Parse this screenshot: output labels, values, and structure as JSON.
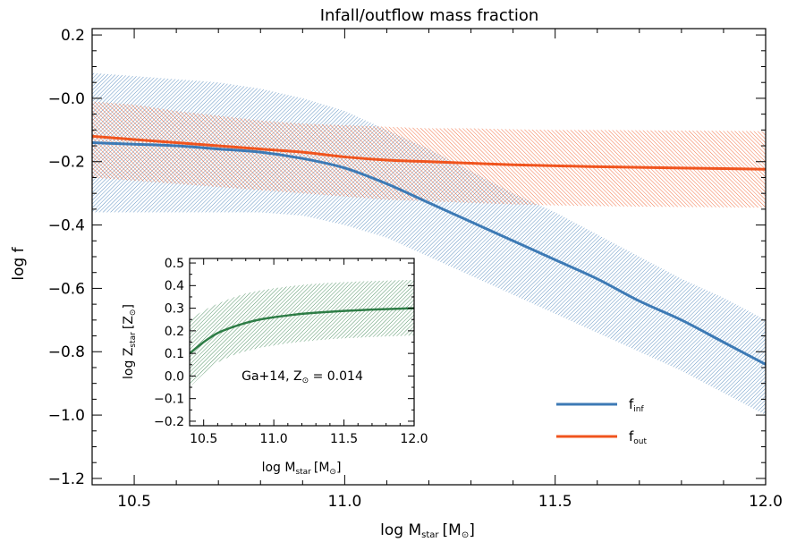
{
  "chart_data": [
    {
      "type": "line",
      "title": "Infall/outflow mass fraction",
      "xlabel": {
        "main": "log M",
        "sub": "star",
        "unit": "[M",
        "sun": "⊙",
        "close": "]"
      },
      "ylabel": "log f",
      "xlim": [
        10.4,
        12.0
      ],
      "ylim": [
        -1.22,
        0.22
      ],
      "xticks": [
        10.5,
        11.0,
        11.5,
        12.0
      ],
      "xtick_labels": [
        "10.5",
        "11.0",
        "11.5",
        "12.0"
      ],
      "yticks": [
        0.2,
        0.0,
        -0.2,
        -0.4,
        -0.6,
        -0.8,
        -1.0,
        -1.2
      ],
      "ytick_labels": [
        "0.2",
        "−0.0",
        "−0.2",
        "−0.4",
        "−0.6",
        "−0.8",
        "−1.0",
        "−1.2"
      ],
      "x": [
        10.4,
        10.5,
        10.6,
        10.7,
        10.8,
        10.9,
        11.0,
        11.1,
        11.2,
        11.3,
        11.4,
        11.5,
        11.6,
        11.7,
        11.8,
        11.9,
        12.0
      ],
      "series": [
        {
          "name_main": "f",
          "name_sub": "inf",
          "color": "#3d7ab5",
          "values": [
            -0.14,
            -0.145,
            -0.15,
            -0.16,
            -0.17,
            -0.19,
            -0.22,
            -0.27,
            -0.33,
            -0.39,
            -0.45,
            -0.51,
            -0.57,
            -0.64,
            -0.7,
            -0.77,
            -0.84
          ],
          "upper": [
            0.08,
            0.07,
            0.06,
            0.05,
            0.03,
            0.0,
            -0.04,
            -0.1,
            -0.16,
            -0.23,
            -0.3,
            -0.36,
            -0.43,
            -0.5,
            -0.57,
            -0.63,
            -0.7
          ],
          "lower": [
            -0.36,
            -0.36,
            -0.36,
            -0.36,
            -0.36,
            -0.37,
            -0.4,
            -0.44,
            -0.5,
            -0.56,
            -0.62,
            -0.68,
            -0.74,
            -0.8,
            -0.86,
            -0.93,
            -1.0
          ]
        },
        {
          "name_main": "f",
          "name_sub": "out",
          "color": "#f0541e",
          "values": [
            -0.12,
            -0.13,
            -0.14,
            -0.15,
            -0.16,
            -0.17,
            -0.185,
            -0.195,
            -0.2,
            -0.205,
            -0.21,
            -0.213,
            -0.216,
            -0.218,
            -0.22,
            -0.222,
            -0.224
          ],
          "upper": [
            -0.01,
            -0.02,
            -0.04,
            -0.055,
            -0.07,
            -0.08,
            -0.085,
            -0.09,
            -0.095,
            -0.095,
            -0.098,
            -0.1,
            -0.1,
            -0.101,
            -0.102,
            -0.103,
            -0.104
          ],
          "lower": [
            -0.25,
            -0.26,
            -0.27,
            -0.28,
            -0.29,
            -0.3,
            -0.31,
            -0.32,
            -0.325,
            -0.33,
            -0.335,
            -0.338,
            -0.34,
            -0.342,
            -0.343,
            -0.344,
            -0.345
          ]
        }
      ],
      "legend": "bottom-right"
    },
    {
      "type": "line",
      "xlabel": {
        "main": "log M",
        "sub": "star",
        "unit": "[M",
        "sun": "⊙",
        "close": "]"
      },
      "ylabel": {
        "main": "log Z",
        "sub": "star",
        "unit": "[Z",
        "sun": "⊙",
        "close": "]"
      },
      "xlim": [
        10.4,
        12.0
      ],
      "ylim": [
        -0.22,
        0.52
      ],
      "xticks": [
        10.5,
        11.0,
        11.5,
        12.0
      ],
      "xtick_labels": [
        "10.5",
        "11.0",
        "11.5",
        "12.0"
      ],
      "yticks": [
        0.5,
        0.4,
        0.3,
        0.2,
        0.1,
        0.0,
        -0.1,
        -0.2
      ],
      "ytick_labels": [
        "0.5",
        "0.4",
        "0.3",
        "0.2",
        "0.1",
        "0.0",
        "−0.1",
        "−0.2"
      ],
      "annotation": {
        "text_a": "Ga+14, Z",
        "sun": "⊙",
        "text_b": " = 0.014"
      },
      "x": [
        10.4,
        10.5,
        10.6,
        10.7,
        10.8,
        10.9,
        11.0,
        11.1,
        11.2,
        11.3,
        11.4,
        11.5,
        11.6,
        11.7,
        11.8,
        11.9,
        12.0
      ],
      "series": [
        {
          "color": "#2e7d46",
          "values": [
            0.1,
            0.15,
            0.19,
            0.215,
            0.235,
            0.25,
            0.26,
            0.268,
            0.275,
            0.28,
            0.284,
            0.288,
            0.291,
            0.294,
            0.296,
            0.298,
            0.3
          ],
          "upper": [
            0.25,
            0.29,
            0.32,
            0.345,
            0.365,
            0.378,
            0.388,
            0.396,
            0.403,
            0.408,
            0.412,
            0.415,
            0.418,
            0.42,
            0.422,
            0.424,
            0.425
          ],
          "lower": [
            -0.05,
            0.01,
            0.06,
            0.09,
            0.11,
            0.125,
            0.135,
            0.145,
            0.152,
            0.158,
            0.163,
            0.167,
            0.17,
            0.173,
            0.175,
            0.177,
            0.18
          ]
        }
      ]
    }
  ]
}
